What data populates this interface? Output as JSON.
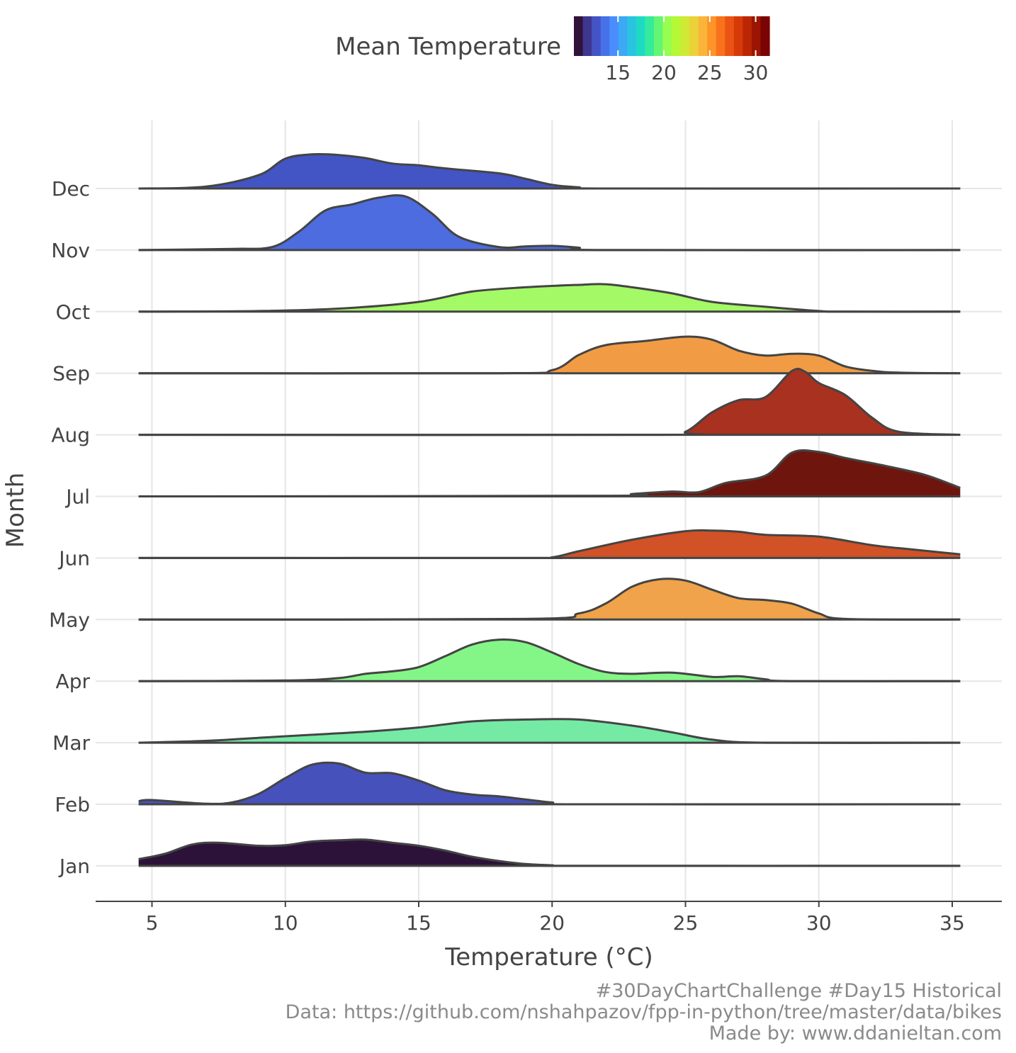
{
  "legend": {
    "title": "Mean Temperature",
    "ticks": [
      15,
      20,
      25,
      30
    ],
    "range": [
      10.2,
      31.5
    ],
    "colors": [
      "#30123b",
      "#3e378f",
      "#4454c4",
      "#4771e9",
      "#4a8dfc",
      "#3ca9f5",
      "#28c4e0",
      "#1fdac3",
      "#36ea9c",
      "#64f573",
      "#97fd4f",
      "#b5f836",
      "#d0e934",
      "#ead238",
      "#fbb43a",
      "#fe9328",
      "#f8711b",
      "#ea5313",
      "#d63a09",
      "#bb2604",
      "#9b1502",
      "#7a0403"
    ]
  },
  "caption": {
    "line1": "#30DayChartChallenge #Day15 Historical",
    "line2": "Data: https://github.com/nshahpazov/fpp-in-python/tree/master/data/bikes",
    "line3": "Made by: www.ddanieltan.com"
  },
  "chart_data": {
    "type": "ridgeline",
    "xlabel": "Temperature (°C)",
    "ylabel": "Month",
    "xlim": [
      3,
      37
    ],
    "x_ticks": [
      5,
      10,
      15,
      20,
      25,
      30,
      35
    ],
    "x_range": [
      4.5,
      35.3
    ],
    "categories": [
      "Dec",
      "Nov",
      "Oct",
      "Sep",
      "Aug",
      "Jul",
      "Jun",
      "May",
      "Apr",
      "Mar",
      "Feb",
      "Jan"
    ],
    "series": [
      {
        "name": "Dec",
        "fill": "#4354c4",
        "points": [
          [
            4.5,
            0
          ],
          [
            7,
            0.03
          ],
          [
            9,
            0.22
          ],
          [
            10,
            0.49
          ],
          [
            11,
            0.56
          ],
          [
            12,
            0.55
          ],
          [
            13,
            0.5
          ],
          [
            14,
            0.41
          ],
          [
            15,
            0.38
          ],
          [
            16,
            0.33
          ],
          [
            18,
            0.25
          ],
          [
            19,
            0.16
          ],
          [
            20,
            0.06
          ],
          [
            21,
            0.02
          ],
          [
            22,
            0
          ],
          [
            35.3,
            0
          ]
        ]
      },
      {
        "name": "Nov",
        "fill": "#4d6ce0",
        "points": [
          [
            4.5,
            0
          ],
          [
            8,
            0.02
          ],
          [
            9.5,
            0.05
          ],
          [
            10.5,
            0.3
          ],
          [
            11.5,
            0.65
          ],
          [
            12.5,
            0.75
          ],
          [
            13.5,
            0.86
          ],
          [
            14.5,
            0.88
          ],
          [
            15.5,
            0.6
          ],
          [
            16.5,
            0.22
          ],
          [
            18,
            0.05
          ],
          [
            19,
            0.06
          ],
          [
            20,
            0.07
          ],
          [
            21,
            0.04
          ],
          [
            22,
            0
          ],
          [
            35.3,
            0
          ]
        ]
      },
      {
        "name": "Oct",
        "fill": "#a4f966",
        "points": [
          [
            4.5,
            0
          ],
          [
            9,
            0.01
          ],
          [
            12,
            0.05
          ],
          [
            15,
            0.16
          ],
          [
            17,
            0.33
          ],
          [
            19,
            0.4
          ],
          [
            21,
            0.44
          ],
          [
            22,
            0.45
          ],
          [
            23,
            0.4
          ],
          [
            24.5,
            0.3
          ],
          [
            26,
            0.16
          ],
          [
            28,
            0.08
          ],
          [
            30,
            0.01
          ],
          [
            31,
            0
          ],
          [
            35.3,
            0
          ]
        ]
      },
      {
        "name": "Sep",
        "fill": "#f19c45",
        "points": [
          [
            4.5,
            0
          ],
          [
            18,
            0
          ],
          [
            20,
            0.05
          ],
          [
            21,
            0.3
          ],
          [
            22,
            0.46
          ],
          [
            23.5,
            0.53
          ],
          [
            25,
            0.6
          ],
          [
            26,
            0.55
          ],
          [
            27,
            0.37
          ],
          [
            28,
            0.29
          ],
          [
            29,
            0.32
          ],
          [
            30,
            0.29
          ],
          [
            31,
            0.11
          ],
          [
            32,
            0.04
          ],
          [
            33,
            0.01
          ],
          [
            35.3,
            0
          ]
        ]
      },
      {
        "name": "Aug",
        "fill": "#a83120",
        "points": [
          [
            4.5,
            0
          ],
          [
            24,
            0
          ],
          [
            25,
            0.05
          ],
          [
            26,
            0.37
          ],
          [
            27,
            0.57
          ],
          [
            28,
            0.62
          ],
          [
            29,
            1.05
          ],
          [
            29.5,
            1.03
          ],
          [
            30,
            0.85
          ],
          [
            31,
            0.65
          ],
          [
            32,
            0.28
          ],
          [
            33,
            0.05
          ],
          [
            35.3,
            0
          ]
        ]
      },
      {
        "name": "Jul",
        "fill": "#6e160d",
        "points": [
          [
            4.5,
            0
          ],
          [
            22,
            0.01
          ],
          [
            23,
            0.04
          ],
          [
            24.5,
            0.08
          ],
          [
            25.5,
            0.07
          ],
          [
            26.5,
            0.22
          ],
          [
            28,
            0.34
          ],
          [
            29,
            0.72
          ],
          [
            30,
            0.73
          ],
          [
            31,
            0.63
          ],
          [
            32.5,
            0.5
          ],
          [
            34,
            0.35
          ],
          [
            35.3,
            0.14
          ]
        ]
      },
      {
        "name": "Jun",
        "fill": "#d05226",
        "points": [
          [
            4.5,
            0
          ],
          [
            19,
            0
          ],
          [
            20,
            0.01
          ],
          [
            21,
            0.11
          ],
          [
            23,
            0.3
          ],
          [
            25,
            0.44
          ],
          [
            26,
            0.45
          ],
          [
            27,
            0.43
          ],
          [
            28,
            0.38
          ],
          [
            30,
            0.35
          ],
          [
            32,
            0.21
          ],
          [
            33.5,
            0.14
          ],
          [
            35.3,
            0.06
          ]
        ]
      },
      {
        "name": "May",
        "fill": "#f0a34a",
        "points": [
          [
            4.5,
            0
          ],
          [
            19,
            0.01
          ],
          [
            21,
            0.1
          ],
          [
            22,
            0.26
          ],
          [
            23,
            0.54
          ],
          [
            24,
            0.66
          ],
          [
            25,
            0.64
          ],
          [
            26,
            0.49
          ],
          [
            27,
            0.35
          ],
          [
            28,
            0.32
          ],
          [
            29,
            0.26
          ],
          [
            30,
            0.1
          ],
          [
            31,
            0.01
          ],
          [
            35.3,
            0
          ]
        ]
      },
      {
        "name": "Apr",
        "fill": "#84f688",
        "points": [
          [
            4.5,
            0
          ],
          [
            10,
            0.01
          ],
          [
            12,
            0.05
          ],
          [
            13,
            0.12
          ],
          [
            14,
            0.16
          ],
          [
            15,
            0.23
          ],
          [
            16,
            0.41
          ],
          [
            17,
            0.6
          ],
          [
            18,
            0.68
          ],
          [
            19,
            0.64
          ],
          [
            20,
            0.47
          ],
          [
            21,
            0.28
          ],
          [
            22,
            0.15
          ],
          [
            23,
            0.12
          ],
          [
            24.5,
            0.14
          ],
          [
            26,
            0.07
          ],
          [
            27,
            0.08
          ],
          [
            28,
            0.03
          ],
          [
            29,
            0
          ],
          [
            35.3,
            0
          ]
        ]
      },
      {
        "name": "Mar",
        "fill": "#75eaa5",
        "points": [
          [
            4.5,
            0
          ],
          [
            7,
            0.03
          ],
          [
            9,
            0.08
          ],
          [
            11,
            0.13
          ],
          [
            13,
            0.18
          ],
          [
            15,
            0.25
          ],
          [
            17,
            0.35
          ],
          [
            19,
            0.38
          ],
          [
            21,
            0.38
          ],
          [
            23,
            0.28
          ],
          [
            24.5,
            0.17
          ],
          [
            26,
            0.05
          ],
          [
            28,
            0
          ],
          [
            35.3,
            0
          ]
        ]
      },
      {
        "name": "Feb",
        "fill": "#4651bb",
        "points": [
          [
            4.5,
            0.05
          ],
          [
            5,
            0.07
          ],
          [
            7,
            0.01
          ],
          [
            8,
            0.03
          ],
          [
            9,
            0.17
          ],
          [
            10,
            0.43
          ],
          [
            11,
            0.65
          ],
          [
            12,
            0.67
          ],
          [
            13,
            0.52
          ],
          [
            14,
            0.51
          ],
          [
            15,
            0.39
          ],
          [
            16,
            0.23
          ],
          [
            17,
            0.16
          ],
          [
            18,
            0.13
          ],
          [
            19,
            0.08
          ],
          [
            20,
            0.03
          ],
          [
            21,
            0
          ],
          [
            35.3,
            0
          ]
        ]
      },
      {
        "name": "Jan",
        "fill": "#2c1239",
        "points": [
          [
            4.5,
            0.11
          ],
          [
            5.5,
            0.2
          ],
          [
            6.5,
            0.35
          ],
          [
            7.5,
            0.38
          ],
          [
            9,
            0.33
          ],
          [
            10,
            0.34
          ],
          [
            11,
            0.4
          ],
          [
            12,
            0.42
          ],
          [
            13,
            0.43
          ],
          [
            14,
            0.38
          ],
          [
            15,
            0.33
          ],
          [
            16,
            0.25
          ],
          [
            17,
            0.15
          ],
          [
            18,
            0.08
          ],
          [
            19,
            0.03
          ],
          [
            20,
            0.01
          ],
          [
            21,
            0
          ],
          [
            35.3,
            0
          ]
        ]
      }
    ]
  }
}
